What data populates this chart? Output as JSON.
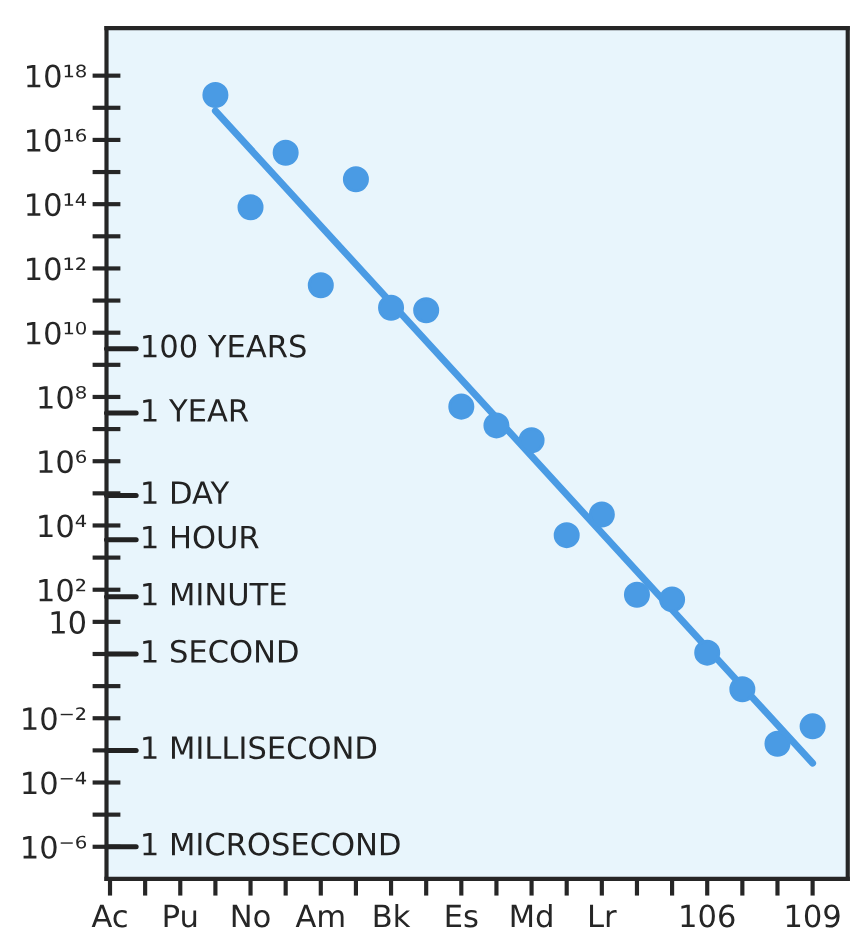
{
  "chart_data": {
    "type": "scatter",
    "log": "y",
    "grid": false,
    "legend": false,
    "xlim": [
      88.9,
      110
    ],
    "xticks": [
      {
        "value": 89,
        "label": "Ac"
      },
      {
        "value": 90,
        "label": null
      },
      {
        "value": 91,
        "label": "Pu"
      },
      {
        "value": 92,
        "label": null
      },
      {
        "value": 93,
        "label": "No"
      },
      {
        "value": 94,
        "label": null
      },
      {
        "value": 95,
        "label": "Am"
      },
      {
        "value": 96,
        "label": null
      },
      {
        "value": 97,
        "label": "Bk"
      },
      {
        "value": 98,
        "label": null
      },
      {
        "value": 99,
        "label": "Es"
      },
      {
        "value": 100,
        "label": null
      },
      {
        "value": 101,
        "label": "Md"
      },
      {
        "value": 102,
        "label": null
      },
      {
        "value": 103,
        "label": "Lr"
      },
      {
        "value": 104,
        "label": null
      },
      {
        "value": 105,
        "label": null
      },
      {
        "value": 106,
        "label": "106"
      },
      {
        "value": 107,
        "label": null
      },
      {
        "value": 108,
        "label": null
      },
      {
        "value": 109,
        "label": "109"
      }
    ],
    "ylim": [
      1e-07,
      3e+19
    ],
    "yticks": [
      {
        "value": 1e+18,
        "label": "10¹⁸"
      },
      {
        "value": 1e+17,
        "label": null
      },
      {
        "value": 1e+16,
        "label": "10¹⁶"
      },
      {
        "value": 1000000000000000.0,
        "label": null
      },
      {
        "value": 100000000000000.0,
        "label": "10¹⁴"
      },
      {
        "value": 10000000000000.0,
        "label": null
      },
      {
        "value": 1000000000000.0,
        "label": "10¹²"
      },
      {
        "value": 100000000000.0,
        "label": null
      },
      {
        "value": 10000000000.0,
        "label": "10¹⁰"
      },
      {
        "value": 1000000000.0,
        "label": null
      },
      {
        "value": 100000000.0,
        "label": "10⁸"
      },
      {
        "value": 10000000.0,
        "label": null
      },
      {
        "value": 1000000.0,
        "label": "10⁶"
      },
      {
        "value": 100000.0,
        "label": null
      },
      {
        "value": 10000.0,
        "label": "10⁴"
      },
      {
        "value": 1000.0,
        "label": null
      },
      {
        "value": 100,
        "label": "10²"
      },
      {
        "value": 10,
        "label": "10"
      },
      {
        "value": 1,
        "label": null
      },
      {
        "value": 0.1,
        "label": null
      },
      {
        "value": 0.01,
        "label": "10⁻²"
      },
      {
        "value": 0.001,
        "label": null
      },
      {
        "value": 0.0001,
        "label": "10⁻⁴"
      },
      {
        "value": 1e-05,
        "label": null
      },
      {
        "value": 1e-06,
        "label": "10⁻⁶"
      }
    ],
    "ref_lines": [
      {
        "axis": "y",
        "value": 3160000000.0,
        "label": "100 YEARS"
      },
      {
        "axis": "y",
        "value": 31600000.0,
        "label": "1 YEAR"
      },
      {
        "axis": "y",
        "value": 86400,
        "label": "1 DAY"
      },
      {
        "axis": "y",
        "value": 3600,
        "label": "1 HOUR"
      },
      {
        "axis": "y",
        "value": 60,
        "label": "1 MINUTE"
      },
      {
        "axis": "y",
        "value": 1,
        "label": "1 SECOND"
      },
      {
        "axis": "y",
        "value": 0.001,
        "label": "1 MILLISECOND"
      },
      {
        "axis": "y",
        "value": 1e-06,
        "label": "1 MICROSECOND"
      }
    ],
    "series": [
      {
        "marker": "circle",
        "color": "#4a9be4",
        "x": [
          92,
          93,
          94,
          95,
          96,
          97,
          98,
          99,
          100,
          101,
          102,
          103,
          104,
          105,
          106,
          107,
          108,
          109
        ],
        "values": [
          2.5e+17,
          80000000000000.0,
          4000000000000000.0,
          300000000000.0,
          600000000000000.0,
          60000000000.0,
          50000000000.0,
          50000000.0,
          13000000.0,
          4500000.0,
          5000.0,
          22000.0,
          70,
          50,
          1.1,
          0.08,
          0.0016,
          0.0056
        ]
      },
      {
        "type": "line",
        "color": "#4a9be4",
        "x": [
          92,
          109
        ],
        "values": [
          8e+16,
          0.0004
        ]
      }
    ]
  }
}
